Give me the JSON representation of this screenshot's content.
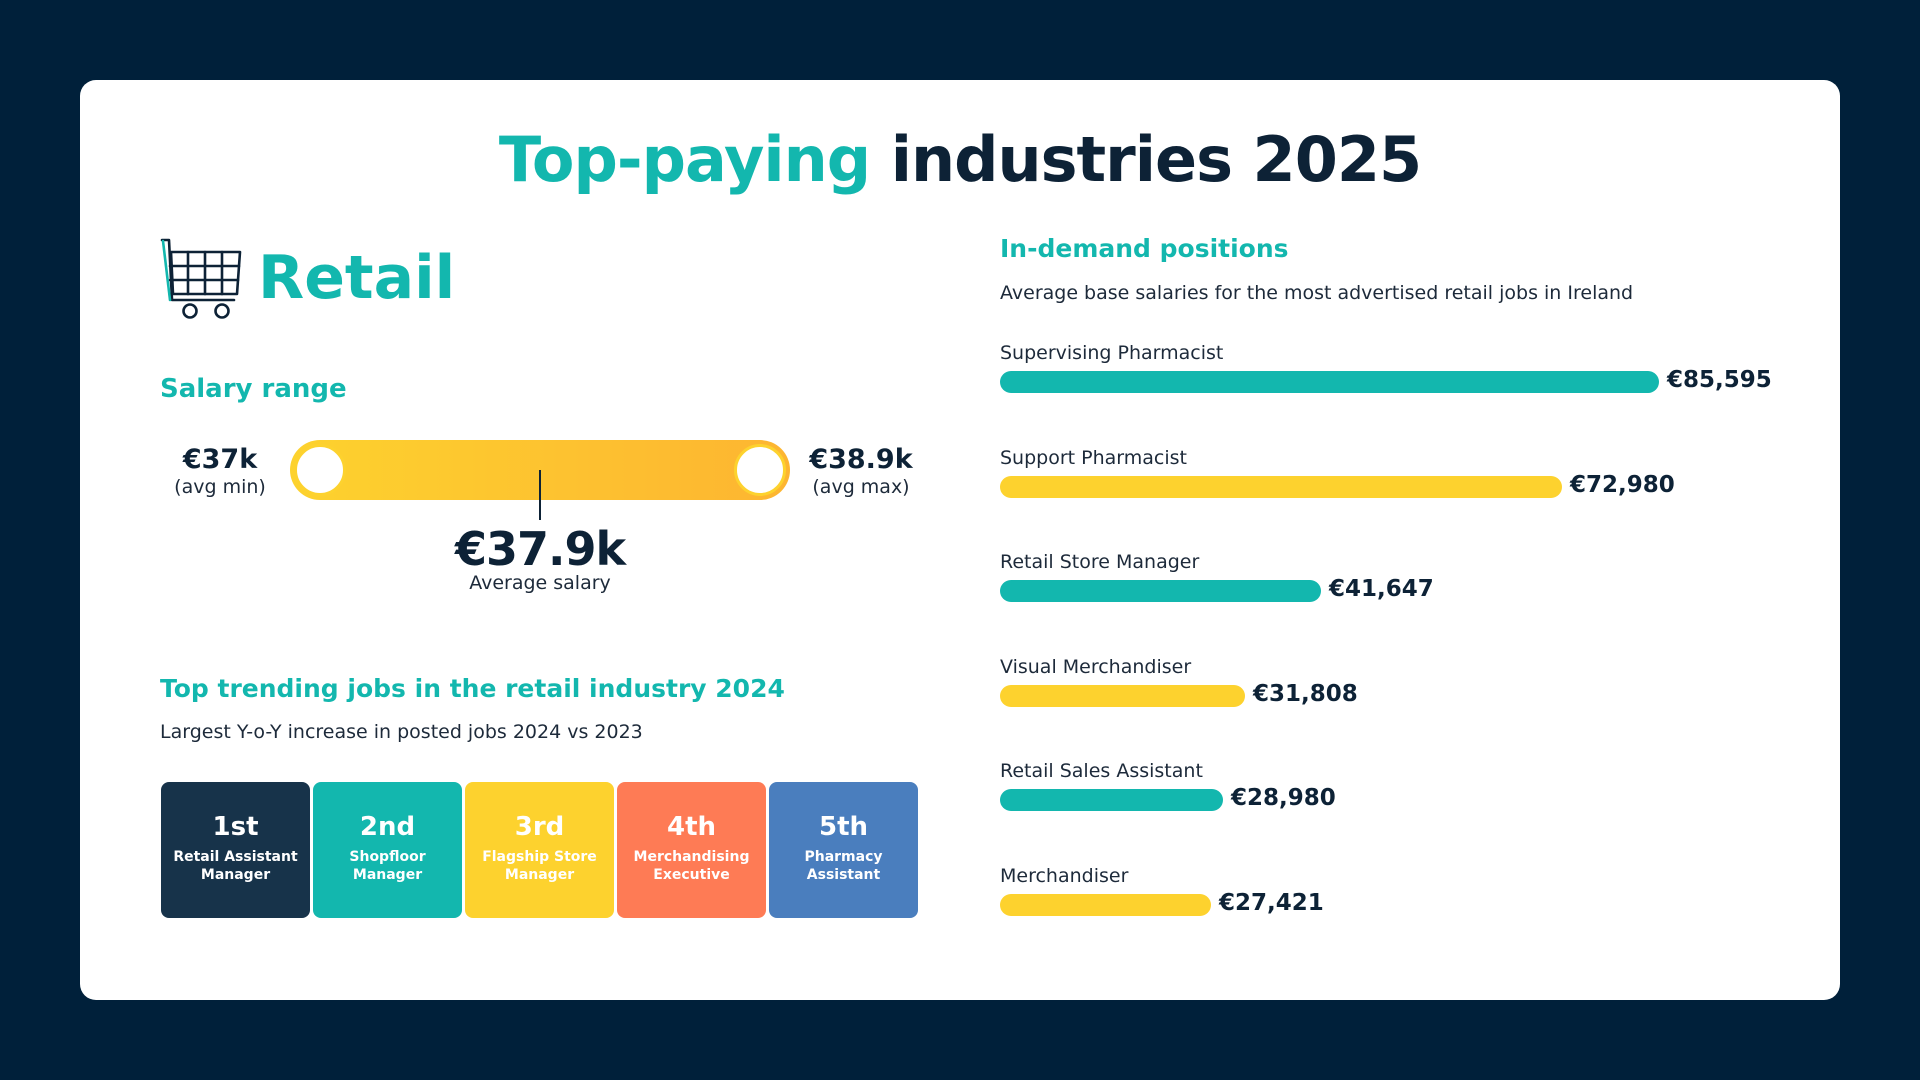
{
  "title": {
    "accent": "Top-paying",
    "rest": "industries 2025"
  },
  "industry": {
    "name": "Retail",
    "icon": "shopping-cart-icon"
  },
  "salary_range": {
    "heading": "Salary range",
    "min_value": "€37k",
    "min_note": "(avg min)",
    "max_value": "€38.9k",
    "max_note": "(avg max)",
    "average_value": "€37.9k",
    "average_note": "Average salary"
  },
  "trending": {
    "heading": "Top trending jobs in the retail industry 2024",
    "subtitle": "Largest Y-o-Y increase in posted jobs 2024 vs 2023",
    "items": [
      {
        "rank": "1st",
        "job": "Retail Assistant Manager",
        "color": "#17334a"
      },
      {
        "rank": "2nd",
        "job": "Shopfloor Manager",
        "color": "#13b7ae"
      },
      {
        "rank": "3rd",
        "job": "Flagship Store Manager",
        "color": "#fdd22e"
      },
      {
        "rank": "4th",
        "job": "Merchandising Executive",
        "color": "#fe7b55"
      },
      {
        "rank": "5th",
        "job": "Pharmacy Assistant",
        "color": "#4a7ebe"
      }
    ]
  },
  "colors": {
    "teal": "#13b7ae",
    "yellow": "#fdd22e",
    "navy": "#0d2236"
  },
  "chart_data": {
    "type": "bar",
    "orientation": "horizontal",
    "title": "In-demand positions",
    "subtitle": "Average base salaries for the most advertised retail jobs in Ireland",
    "xlabel": "",
    "ylabel": "",
    "currency": "€",
    "categories": [
      "Supervising Pharmacist",
      "Support Pharmacist",
      "Retail Store Manager",
      "Visual Merchandiser",
      "Retail Sales Assistant",
      "Merchandiser"
    ],
    "values": [
      85595,
      72980,
      41647,
      31808,
      28980,
      27421
    ],
    "value_labels": [
      "€85,595",
      "€72,980",
      "€41,647",
      "€31,808",
      "€28,980",
      "€27,421"
    ],
    "bar_colors": [
      "#13b7ae",
      "#fdd22e",
      "#13b7ae",
      "#fdd22e",
      "#13b7ae",
      "#fdd22e"
    ],
    "xlim": [
      0,
      85595
    ],
    "grid": false,
    "legend": "none"
  }
}
